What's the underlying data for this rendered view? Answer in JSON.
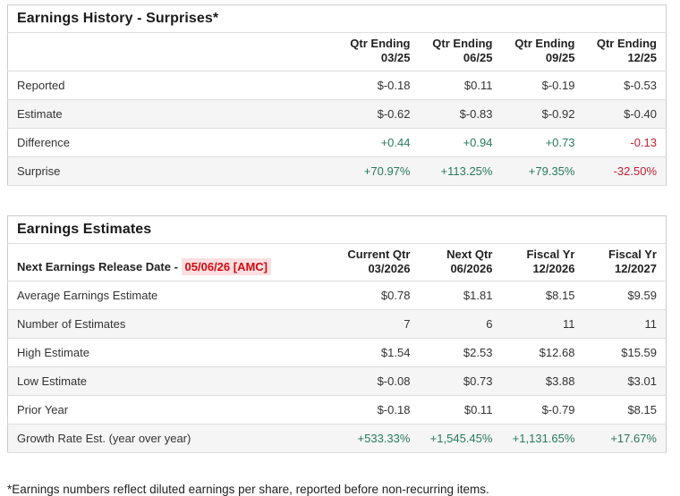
{
  "colors": {
    "positive": "#27795c",
    "negative": "#c01e32",
    "release_date_text": "#d10b11",
    "release_date_bg": "#fcdfe1"
  },
  "history": {
    "title": "Earnings History - Surprises*",
    "columns": [
      "Qtr Ending\n03/25",
      "Qtr Ending\n06/25",
      "Qtr Ending\n09/25",
      "Qtr Ending\n12/25"
    ],
    "rows": [
      {
        "label": "Reported",
        "values": [
          "$-0.18",
          "$0.11",
          "$-0.19",
          "$-0.53"
        ]
      },
      {
        "label": "Estimate",
        "values": [
          "$-0.62",
          "$-0.83",
          "$-0.92",
          "$-0.40"
        ]
      },
      {
        "label": "Difference",
        "values": [
          "+0.44",
          "+0.94",
          "+0.73",
          "-0.13"
        ]
      },
      {
        "label": "Surprise",
        "values": [
          "+70.97%",
          "+113.25%",
          "+79.35%",
          "-32.50%"
        ]
      }
    ]
  },
  "estimates": {
    "title": "Earnings Estimates",
    "release_label": "Next Earnings Release Date - ",
    "release_date": "05/06/26 [AMC]",
    "columns": [
      "Current Qtr\n03/2026",
      "Next Qtr\n06/2026",
      "Fiscal Yr\n12/2026",
      "Fiscal Yr\n12/2027"
    ],
    "rows": [
      {
        "label": "Average Earnings Estimate",
        "values": [
          "$0.78",
          "$1.81",
          "$8.15",
          "$9.59"
        ]
      },
      {
        "label": "Number of Estimates",
        "values": [
          "7",
          "6",
          "11",
          "11"
        ]
      },
      {
        "label": "High Estimate",
        "values": [
          "$1.54",
          "$2.53",
          "$12.68",
          "$15.59"
        ]
      },
      {
        "label": "Low Estimate",
        "values": [
          "$-0.08",
          "$0.73",
          "$3.88",
          "$3.01"
        ]
      },
      {
        "label": "Prior Year",
        "values": [
          "$-0.18",
          "$0.11",
          "$-0.79",
          "$8.15"
        ]
      },
      {
        "label": "Growth Rate Est. (year over year)",
        "values": [
          "+533.33%",
          "+1,545.45%",
          "+1,131.65%",
          "+17.67%"
        ]
      }
    ]
  },
  "page": {
    "footnote": "*Earnings numbers reflect diluted earnings per share, reported before non-recurring items."
  }
}
